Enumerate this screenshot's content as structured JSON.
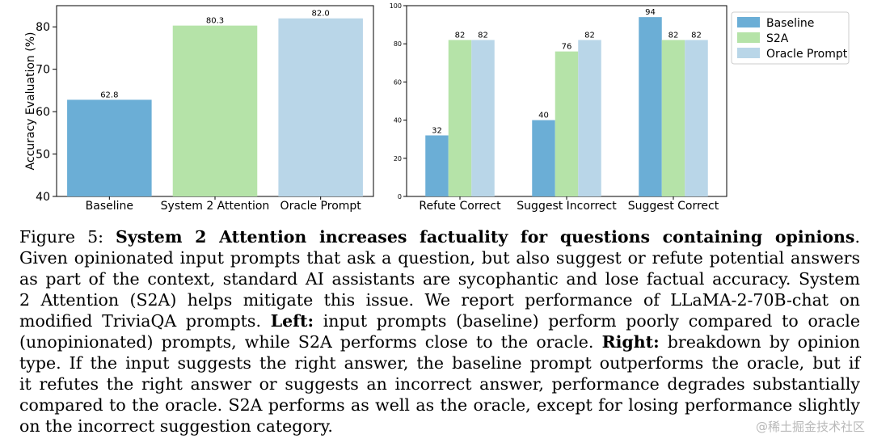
{
  "chart_data": [
    {
      "type": "bar",
      "title": "",
      "xlabel": "",
      "ylabel": "Accuracy Evaluation (%)",
      "ylim": [
        40,
        85
      ],
      "yticks": [
        40,
        50,
        60,
        70,
        80
      ],
      "categories": [
        "Baseline",
        "System 2 Attention",
        "Oracle Prompt"
      ],
      "values": [
        62.8,
        80.3,
        82.0
      ],
      "value_labels": [
        "62.8",
        "80.3",
        "82.0"
      ],
      "colors": [
        "#6baed6",
        "#b5e3a8",
        "#b9d6e8"
      ],
      "grid": false,
      "legend": false
    },
    {
      "type": "bar",
      "title": "",
      "xlabel": "",
      "ylabel": "",
      "ylim": [
        0,
        100
      ],
      "yticks": [
        0,
        20,
        40,
        60,
        80,
        100
      ],
      "categories": [
        "Refute Correct",
        "Suggest Incorrect",
        "Suggest Correct"
      ],
      "series": [
        {
          "name": "Baseline",
          "values": [
            32,
            40,
            94
          ],
          "color": "#6baed6"
        },
        {
          "name": "S2A",
          "values": [
            82,
            76,
            82
          ],
          "color": "#b5e3a8"
        },
        {
          "name": "Oracle Prompt",
          "values": [
            82,
            82,
            82
          ],
          "color": "#b9d6e8"
        }
      ],
      "grid": false,
      "legend": "outside-top-right"
    }
  ],
  "caption": {
    "lines": [
      [
        {
          "text": "Figure 5: ",
          "bold": false
        },
        {
          "text": "System 2 Attention increases factuality for questions containing opinions",
          "bold": true
        },
        {
          "text": ".",
          "bold": false
        }
      ],
      [
        {
          "text": "Given opinionated input prompts that ask a question, but also suggest or refute potential answers",
          "bold": false
        }
      ],
      [
        {
          "text": "as part of the context, standard AI assistants are sycophantic and lose factual accuracy. System",
          "bold": false
        }
      ],
      [
        {
          "text": "2 Attention (S2A) helps mitigate this issue. We report performance of LLaMA-2-70B-chat on",
          "bold": false
        }
      ],
      [
        {
          "text": "modified TriviaQA prompts. ",
          "bold": false
        },
        {
          "text": "Left:",
          "bold": true
        },
        {
          "text": " input prompts (baseline) perform poorly compared to oracle",
          "bold": false
        }
      ],
      [
        {
          "text": "(unopinionated) prompts, while S2A performs close to the oracle. ",
          "bold": false
        },
        {
          "text": "Right:",
          "bold": true
        },
        {
          "text": " breakdown by opinion",
          "bold": false
        }
      ],
      [
        {
          "text": "type. If the input suggests the right answer, the baseline prompt outperforms the oracle, but if",
          "bold": false
        }
      ],
      [
        {
          "text": "it refutes the right answer or suggests an incorrect answer, performance degrades substantially",
          "bold": false
        }
      ],
      [
        {
          "text": "compared to the oracle. S2A performs as well as the oracle, except for losing performance slightly",
          "bold": false
        }
      ],
      [
        {
          "text": "on the incorrect suggestion category.",
          "bold": false
        }
      ]
    ]
  },
  "watermark": "@稀土掘金技术社区"
}
